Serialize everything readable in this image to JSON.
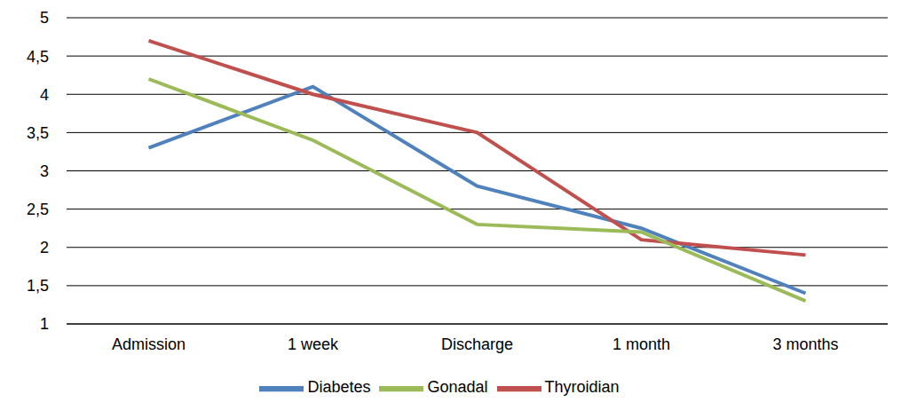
{
  "chart_data": {
    "type": "line",
    "categories": [
      "Admission",
      "1 week",
      "Discharge",
      "1 month",
      "3 months"
    ],
    "series": [
      {
        "name": "Diabetes",
        "color": "#4f81bd",
        "values": [
          3.3,
          4.1,
          2.8,
          2.25,
          1.4
        ]
      },
      {
        "name": "Thyroidian",
        "color": "#c0504d",
        "values": [
          4.7,
          4.0,
          3.5,
          2.1,
          1.9
        ]
      },
      {
        "name": "Gonadal",
        "color": "#9bbb59",
        "values": [
          4.2,
          3.4,
          2.3,
          2.2,
          1.3
        ]
      }
    ],
    "ylim": [
      1,
      5
    ],
    "yticks": [
      1,
      {
        "value": 1.5,
        "label": "1,5"
      },
      2,
      {
        "value": 2.5,
        "label": "2,5"
      },
      3,
      {
        "value": 3.5,
        "label": "3,5"
      },
      4,
      {
        "value": 4.5,
        "label": "4,5"
      },
      5
    ],
    "grid": true,
    "legend": "bottom"
  }
}
